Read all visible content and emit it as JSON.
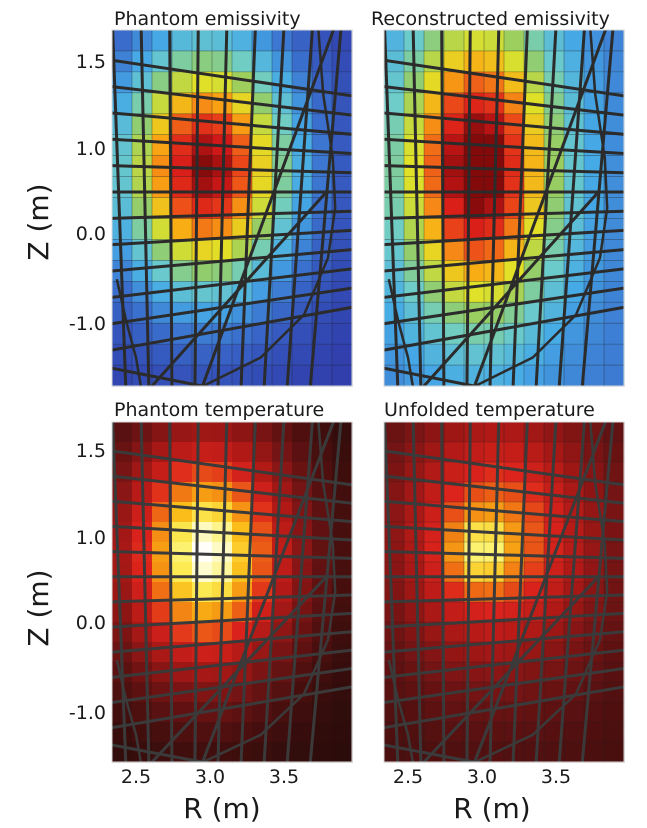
{
  "panels": [
    {
      "id": "phantom-emissivity",
      "title": "Phantom emissivity",
      "colormap": "jet",
      "chord_color": "#2b2b2b",
      "shape": "phantom",
      "grid_lines": true
    },
    {
      "id": "reconstructed-emissivity",
      "title": "Reconstructed emissivity",
      "colormap": "jet",
      "chord_color": "#2b2b2b",
      "shape": "reconstructed",
      "grid_lines": true
    },
    {
      "id": "phantom-temperature",
      "title": "Phantom temperature",
      "colormap": "hot",
      "chord_color": "#3a3a3a",
      "shape": "phantom",
      "grid_lines": false
    },
    {
      "id": "unfolded-temperature",
      "title": "Unfolded temperature",
      "colormap": "hot",
      "chord_color": "#3a3a3a",
      "shape": "unfolded",
      "grid_lines": true
    }
  ],
  "axes": {
    "xlabel": "R (m)",
    "ylabel": "Z (m)",
    "xticks": [
      "2.5",
      "3.0",
      "3.5"
    ],
    "xtick_values": [
      2.5,
      3.0,
      3.5
    ],
    "yticks": [
      "1.5",
      "1.0",
      "0.0",
      "-1.0"
    ],
    "ytick_values": [
      1.5,
      1.0,
      0.0,
      -1.0
    ],
    "xlim": [
      2.3,
      4.0
    ],
    "ylim": [
      -1.45,
      1.65
    ],
    "grid_cols": 12,
    "grid_rows": 17,
    "hot_spot": {
      "r": 2.97,
      "z": 0.45
    }
  }
}
